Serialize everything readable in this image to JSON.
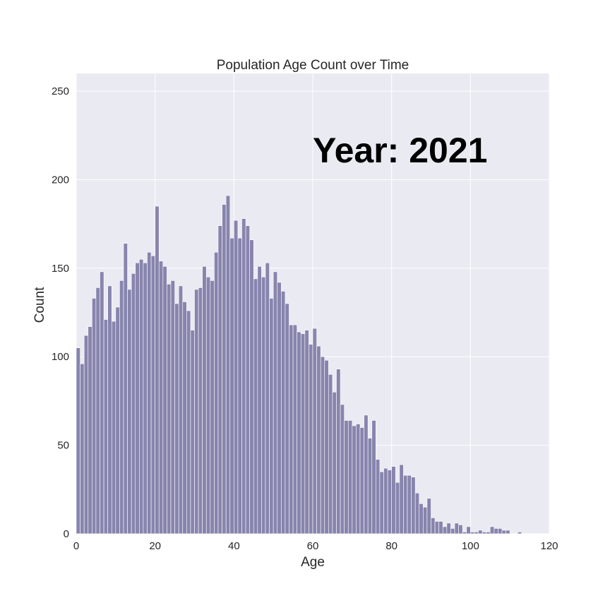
{
  "chart_data": {
    "type": "bar",
    "title": "Population Age Count over Time",
    "xlabel": "Age",
    "ylabel": "Count",
    "annotation": "Year: 2021",
    "xlim": [
      0,
      120
    ],
    "ylim": [
      0,
      260
    ],
    "xticks": [
      0,
      20,
      40,
      60,
      80,
      100,
      120
    ],
    "yticks": [
      0,
      50,
      100,
      150,
      200,
      250
    ],
    "grid": true,
    "bin_width": 1,
    "bar_color": "#8785ad",
    "background_color": "#eaeaf2",
    "grid_color": "#ffffff",
    "x": [
      0,
      1,
      2,
      3,
      4,
      5,
      6,
      7,
      8,
      9,
      10,
      11,
      12,
      13,
      14,
      15,
      16,
      17,
      18,
      19,
      20,
      21,
      22,
      23,
      24,
      25,
      26,
      27,
      28,
      29,
      30,
      31,
      32,
      33,
      34,
      35,
      36,
      37,
      38,
      39,
      40,
      41,
      42,
      43,
      44,
      45,
      46,
      47,
      48,
      49,
      50,
      51,
      52,
      53,
      54,
      55,
      56,
      57,
      58,
      59,
      60,
      61,
      62,
      63,
      64,
      65,
      66,
      67,
      68,
      69,
      70,
      71,
      72,
      73,
      74,
      75,
      76,
      77,
      78,
      79,
      80,
      81,
      82,
      83,
      84,
      85,
      86,
      87,
      88,
      89,
      90,
      91,
      92,
      93,
      94,
      95,
      96,
      97,
      98,
      99,
      100,
      101,
      102,
      103,
      104,
      105,
      106,
      107,
      108,
      109,
      110,
      111,
      112,
      113,
      114,
      115,
      116,
      117,
      118,
      119
    ],
    "values": [
      105,
      96,
      112,
      117,
      133,
      139,
      148,
      121,
      140,
      120,
      128,
      143,
      164,
      138,
      147,
      153,
      155,
      153,
      159,
      157,
      185,
      154,
      151,
      141,
      143,
      130,
      140,
      131,
      126,
      115,
      138,
      139,
      151,
      145,
      143,
      159,
      174,
      186,
      191,
      167,
      177,
      167,
      178,
      174,
      166,
      144,
      151,
      145,
      153,
      133,
      148,
      142,
      137,
      130,
      118,
      118,
      114,
      113,
      115,
      107,
      116,
      106,
      100,
      98,
      90,
      80,
      93,
      73,
      64,
      64,
      61,
      62,
      60,
      67,
      54,
      64,
      42,
      35,
      37,
      36,
      38,
      29,
      39,
      33,
      33,
      32,
      23,
      17,
      15,
      20,
      9,
      7,
      7,
      4,
      6,
      3,
      6,
      5,
      1,
      4,
      1,
      1,
      2,
      1,
      1,
      4,
      3,
      3,
      2,
      2,
      0,
      0,
      1,
      0,
      0,
      0,
      0,
      0,
      0,
      0
    ]
  }
}
